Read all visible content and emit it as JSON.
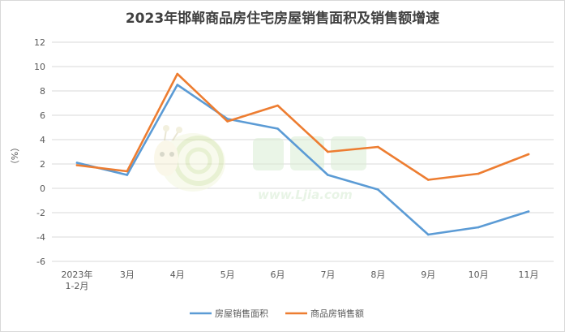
{
  "chart_data": {
    "type": "line",
    "title": "2023年邯郸商品房住宅房屋销售面积及销售额增速",
    "ylabel": "（%）",
    "xlabel": "",
    "ylim": [
      -6,
      12
    ],
    "yticks": [
      -6,
      -4,
      -2,
      0,
      2,
      4,
      6,
      8,
      10,
      12
    ],
    "categories": [
      [
        "2023年",
        "1-2月"
      ],
      [
        "3月"
      ],
      [
        "4月"
      ],
      [
        "5月"
      ],
      [
        "6月"
      ],
      [
        "7月"
      ],
      [
        "8月"
      ],
      [
        "9月"
      ],
      [
        "10月"
      ],
      [
        "11月"
      ]
    ],
    "grid": true,
    "legend_position": "bottom",
    "series": [
      {
        "name": "房屋销售面积",
        "color": "#5b9bd5",
        "values": [
          2.1,
          1.1,
          8.5,
          5.7,
          4.9,
          1.1,
          -0.1,
          -3.8,
          -3.2,
          -1.9
        ]
      },
      {
        "name": "商品房销售额",
        "color": "#ed7d31",
        "values": [
          1.9,
          1.4,
          9.4,
          5.5,
          6.8,
          3.0,
          3.4,
          0.7,
          1.2,
          2.8
        ]
      }
    ]
  },
  "watermark": {
    "text": "www.Ljia.com",
    "icon": "snail-logo-icon"
  }
}
